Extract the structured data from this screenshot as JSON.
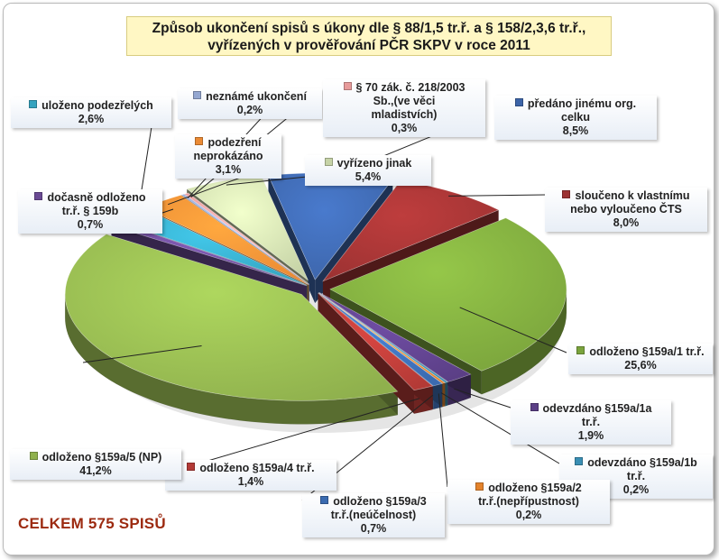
{
  "chart_data": {
    "type": "pie",
    "title": [
      "Způsob ukončení spisů s úkony dle § 88/1,5 tr.ř. a § 158/2,3,6 tr.ř.,",
      "vyřízených v prověřování PČR SKPV v roce 2011"
    ],
    "total_text": "CELKEM 575 SPISŮ",
    "slices": [
      {
        "label": "odloženo §159a/1 tr.ř.",
        "value": 25.6,
        "pct": "25,6%",
        "color": "#7aa33c"
      },
      {
        "label": "odevzdáno §159a/1a\ntr.ř.",
        "value": 1.9,
        "pct": "1,9%",
        "color": "#5b3f86"
      },
      {
        "label": "odevzdáno §159a/1b\ntr.ř.",
        "value": 0.2,
        "pct": "0,2%",
        "color": "#3a8fb4"
      },
      {
        "label": "odloženo §159a/2\ntr.ř.(nepřípustnost)",
        "value": 0.2,
        "pct": "0,2%",
        "color": "#e4832c"
      },
      {
        "label": "odloženo §159a/3\ntr.ř.(neúčelnost)",
        "value": 0.7,
        "pct": "0,7%",
        "color": "#3b6bb0"
      },
      {
        "label": "odloženo §159a/4 tr.ř.",
        "value": 1.4,
        "pct": "1,4%",
        "color": "#b33a36"
      },
      {
        "label": "odloženo §159a/5 (NP)",
        "value": 41.2,
        "pct": "41,2%",
        "color": "#8fb04d"
      },
      {
        "label": "dočasně odloženo\ntr.ř. § 159b",
        "value": 0.7,
        "pct": "0,7%",
        "color": "#6a4a94"
      },
      {
        "label": "uloženo podezřelých",
        "value": 2.6,
        "pct": "2,6%",
        "color": "#35a3bf"
      },
      {
        "label": "podezření\nneprokázáno",
        "value": 3.1,
        "pct": "3,1%",
        "color": "#ea8a34"
      },
      {
        "label": "neznámé ukončení",
        "value": 0.2,
        "pct": "0,2%",
        "color": "#94a7d1"
      },
      {
        "label": "§ 70 zák. č. 218/2003\nSb.,(ve věci\nmladistvích)",
        "value": 0.3,
        "pct": "0,3%",
        "color": "#e79b9b"
      },
      {
        "label": "vyřízeno jinak",
        "value": 5.4,
        "pct": "5,4%",
        "color": "#c6d3a7"
      },
      {
        "label": "předáno jinému org.\ncelku",
        "value": 8.5,
        "pct": "8,5%",
        "color": "#3c64a8"
      },
      {
        "label": "sloučeno k vlastnímu\nnebo vyloučeno  ČTS",
        "value": 8.0,
        "pct": "8,0%",
        "color": "#9c3232"
      }
    ]
  }
}
